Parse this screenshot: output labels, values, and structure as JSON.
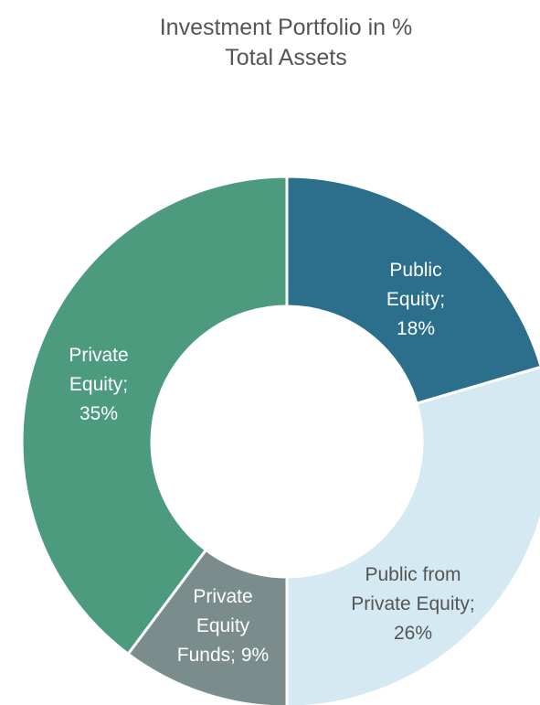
{
  "chart_data": {
    "type": "pie",
    "donut": true,
    "title_lines": [
      "Investment Portfolio in %",
      "Total Assets"
    ],
    "slices": [
      {
        "label_lines": [
          "Public",
          "Equity;",
          "18%"
        ],
        "value": 18,
        "color": "#2b6f8c",
        "text_color": "#ffffff"
      },
      {
        "label_lines": [
          "Public from",
          "Private Equity;",
          "26%"
        ],
        "value": 26,
        "color": "#d4e9f1",
        "text_color": "#555555"
      },
      {
        "label_lines": [
          "Private",
          "Equity",
          "Funds; 9%"
        ],
        "value": 9,
        "color": "#7a8d8c",
        "text_color": "#ffffff"
      },
      {
        "label_lines": [
          "Private",
          "Equity;",
          "35%"
        ],
        "value": 35,
        "color": "#4c9b7e",
        "text_color": "#ffffff"
      }
    ],
    "legend": "none"
  }
}
